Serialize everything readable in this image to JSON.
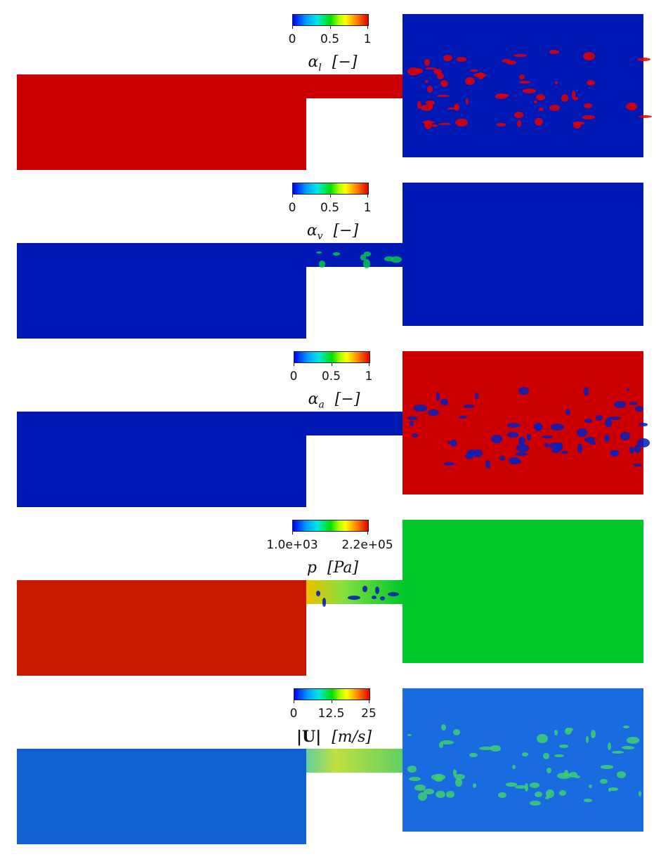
{
  "panels": [
    {
      "key": "alpha_l",
      "title_symbol": "α",
      "title_sub": "l",
      "title_unit": "[−]",
      "ticks": [
        "0",
        "0.5",
        "1"
      ],
      "colors": {
        "inlet": "#cc0000",
        "outlet": "#0018b4",
        "blobs": "#e00000"
      }
    },
    {
      "key": "alpha_v",
      "title_symbol": "α",
      "title_sub": "v",
      "title_unit": "[−]",
      "ticks": [
        "0",
        "0.5",
        "1"
      ],
      "colors": {
        "inlet": "#0018b4",
        "outlet": "#0018b4",
        "blobs": "#00c850"
      }
    },
    {
      "key": "alpha_a",
      "title_symbol": "α",
      "title_sub": "a",
      "title_unit": "[−]",
      "ticks": [
        "0",
        "0.5",
        "1"
      ],
      "colors": {
        "inlet": "#0018b4",
        "outlet": "#cc0000",
        "blobs": "#0020c0"
      }
    },
    {
      "key": "p",
      "title_symbol": "p",
      "title_sub": "",
      "title_unit": "[Pa]",
      "ticks": [
        "1.0e+03",
        "2.2e+05"
      ],
      "colors": {
        "inlet": "#c81800",
        "outlet": "#00c828",
        "blobs": "#0018b4"
      }
    },
    {
      "key": "U",
      "title_symbol": "|U|",
      "title_sub": "",
      "title_unit": "[m/s]",
      "ticks": [
        "0",
        "12.5",
        "25"
      ],
      "colors": {
        "inlet": "#1060d0",
        "outlet": "#1a6ae0",
        "blobs": "#40d070"
      }
    }
  ]
}
